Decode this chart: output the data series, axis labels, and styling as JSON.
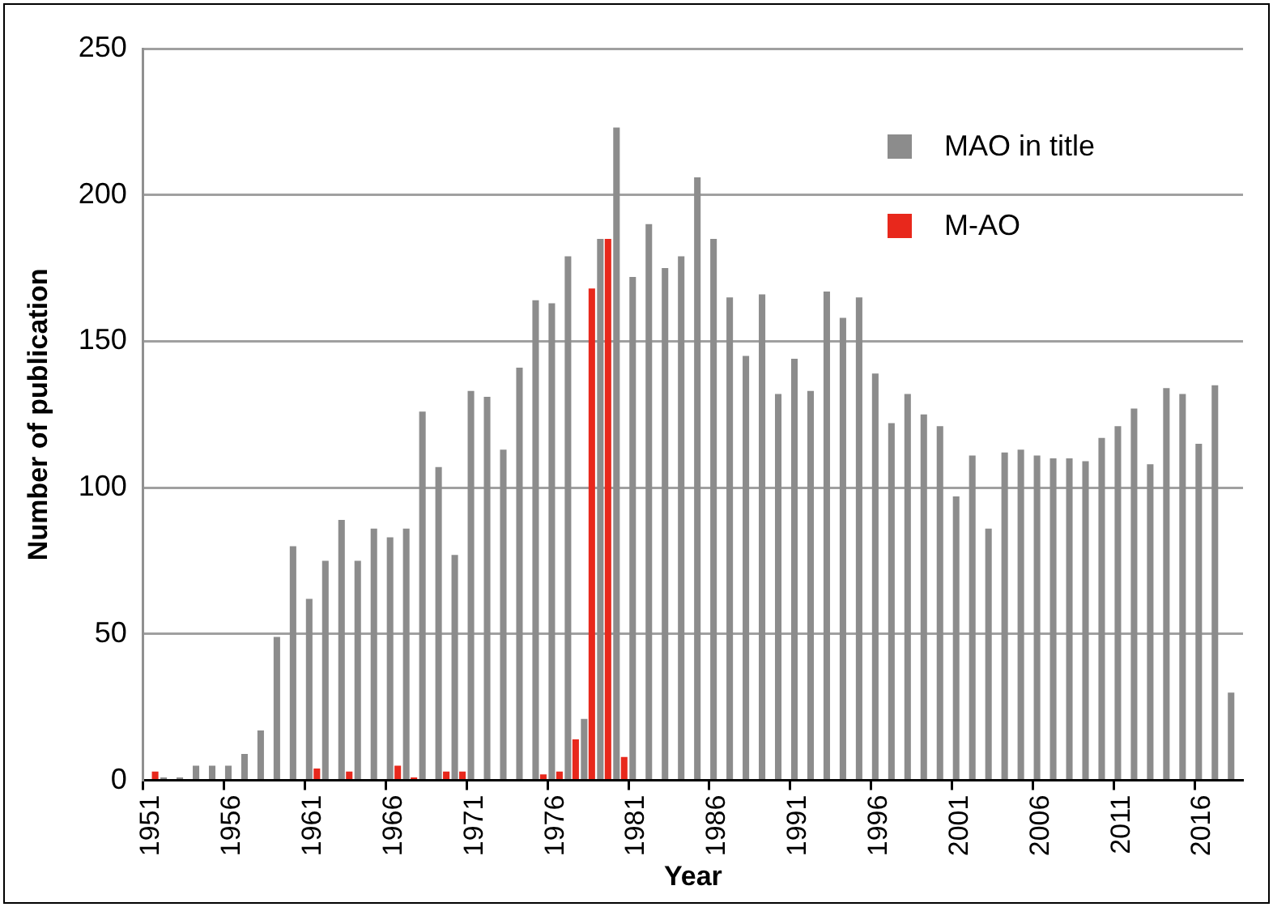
{
  "chart_data": {
    "type": "bar",
    "xlabel": "Year",
    "ylabel": "Number of publication",
    "categories": [
      "1951",
      null,
      null,
      null,
      null,
      "1956",
      null,
      null,
      null,
      null,
      "1961",
      null,
      null,
      null,
      null,
      "1966",
      null,
      null,
      null,
      null,
      "1971",
      null,
      null,
      null,
      null,
      "1976",
      null,
      null,
      null,
      null,
      "1981",
      null,
      null,
      null,
      null,
      "1986",
      null,
      null,
      null,
      null,
      "1991",
      null,
      null,
      null,
      null,
      "1996",
      null,
      null,
      null,
      null,
      "2001",
      null,
      null,
      null,
      null,
      "2006",
      null,
      null,
      null,
      null,
      "2011",
      null,
      null,
      null,
      null,
      "2016",
      null,
      null
    ],
    "series": [
      {
        "name": "MAO in title",
        "color": "#8c8c8c",
        "values": [
          0,
          1,
          1,
          5,
          5,
          5,
          9,
          17,
          49,
          80,
          62,
          75,
          89,
          75,
          86,
          83,
          86,
          126,
          107,
          77,
          133,
          131,
          113,
          141,
          164,
          163,
          179,
          21,
          185,
          223,
          172,
          190,
          175,
          179,
          206,
          185,
          165,
          145,
          166,
          132,
          144,
          133,
          167,
          158,
          165,
          139,
          122,
          132,
          125,
          121,
          97,
          111,
          86,
          112,
          113,
          111,
          110,
          110,
          109,
          117,
          121,
          127,
          108,
          134,
          132,
          115,
          135,
          30
        ]
      },
      {
        "name": "M-AO",
        "color": "#e8281c",
        "values": [
          3,
          0,
          0,
          0,
          0,
          0,
          0,
          0,
          0,
          0,
          4,
          0,
          3,
          0,
          0,
          5,
          1,
          0,
          3,
          3,
          0,
          0,
          0,
          0,
          2,
          3,
          14,
          168,
          185,
          8,
          0,
          0,
          0,
          0,
          0,
          0,
          0,
          0,
          0,
          0,
          0,
          0,
          0,
          0,
          0,
          0,
          0,
          0,
          0,
          0,
          0,
          0,
          0,
          0,
          0,
          0,
          0,
          0,
          0,
          0,
          0,
          0,
          0,
          0,
          0,
          0,
          0,
          0
        ]
      }
    ],
    "ylim": [
      0,
      250
    ],
    "yticks": [
      0,
      50,
      100,
      150,
      200,
      250
    ],
    "grid": "y",
    "legend": "top right"
  }
}
